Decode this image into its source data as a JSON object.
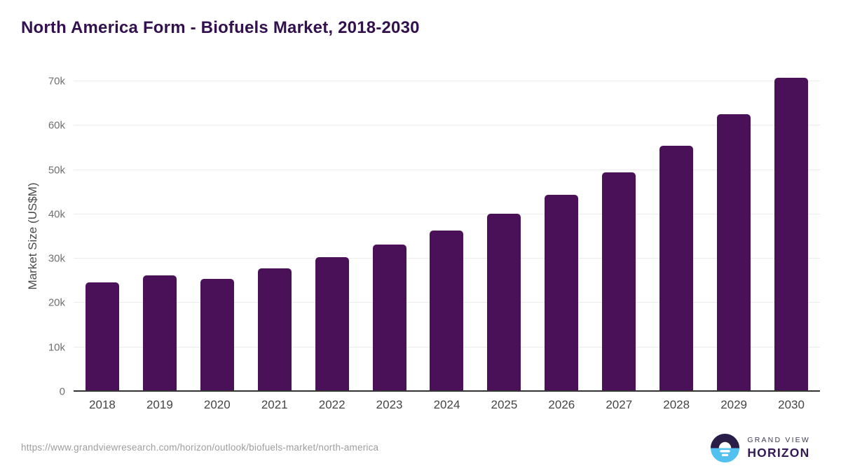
{
  "title": "North America Form - Biofuels Market, 2018-2030",
  "chart_data": {
    "type": "bar",
    "title": "North America Form - Biofuels Market, 2018-2030",
    "categories": [
      "2018",
      "2019",
      "2020",
      "2021",
      "2022",
      "2023",
      "2024",
      "2025",
      "2026",
      "2027",
      "2028",
      "2029",
      "2030"
    ],
    "values": [
      24700,
      26300,
      25400,
      27800,
      30400,
      33200,
      36300,
      40200,
      44400,
      49500,
      55400,
      62500,
      70800
    ],
    "xlabel": "",
    "ylabel": "Market Size (US$M)",
    "ylim": [
      0,
      70000
    ],
    "ytick_interval": 10000,
    "ytick_labels": [
      "0",
      "10k",
      "20k",
      "30k",
      "40k",
      "50k",
      "60k",
      "70k"
    ],
    "grid": true,
    "legend": "none",
    "bar_color": "#4a1158"
  },
  "colors": {
    "bar": "#4a1158",
    "title": "#33104e",
    "gridline": "#ececec",
    "axis_line": "#333333",
    "ytick_text": "#707070",
    "xtick_text": "#454545",
    "source_text": "#9e9e9e",
    "logo_blue": "#53c1f0",
    "logo_dark": "#2a1d47"
  },
  "footer": {
    "source_url": "https://www.grandviewresearch.com/horizon/outlook/biofuels-market/north-america",
    "logo": {
      "line1": "GRAND VIEW",
      "line2": "HORIZON"
    }
  }
}
